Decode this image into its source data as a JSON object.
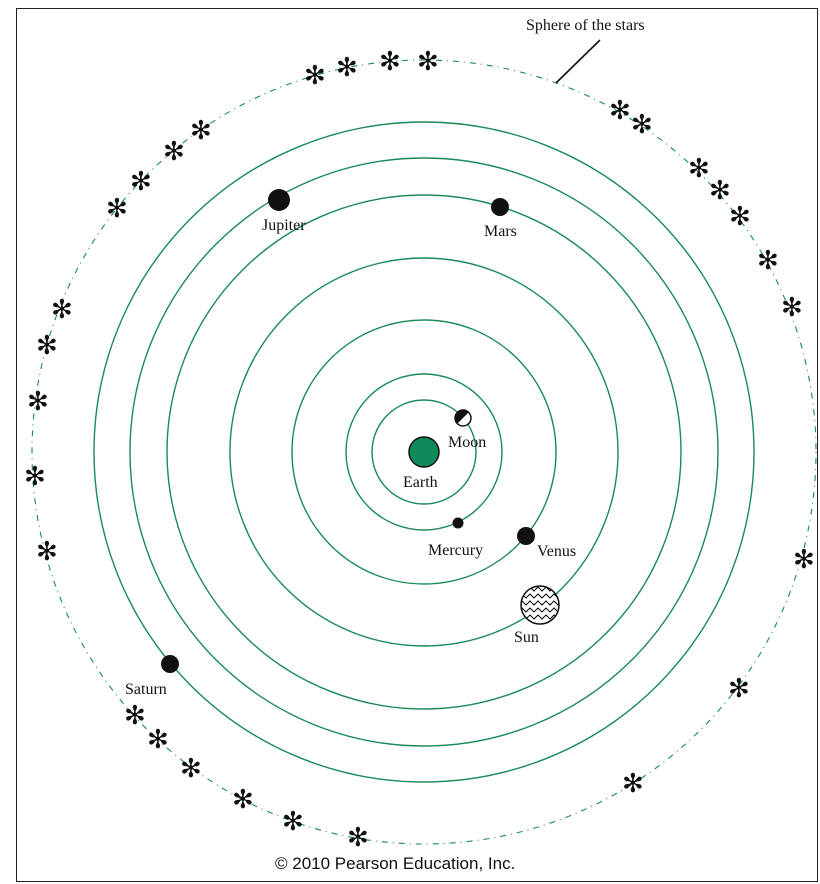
{
  "diagram": {
    "colors": {
      "orbit": "#1a8a5a",
      "earth_fill": "#0e8a5a",
      "planet_fill": "#111111",
      "sphere_dots": "#1a8a5a",
      "background": "#ffffff"
    },
    "sphere_label": "Sphere of the stars",
    "star_glyph": "✻",
    "bodies": {
      "earth": {
        "label": "Earth"
      },
      "moon": {
        "label": "Moon"
      },
      "mercury": {
        "label": "Mercury"
      },
      "venus": {
        "label": "Venus"
      },
      "sun": {
        "label": "Sun"
      },
      "mars": {
        "label": "Mars"
      },
      "jupiter": {
        "label": "Jupiter"
      },
      "saturn": {
        "label": "Saturn"
      }
    },
    "copyright": "© 2010 Pearson Education, Inc."
  }
}
